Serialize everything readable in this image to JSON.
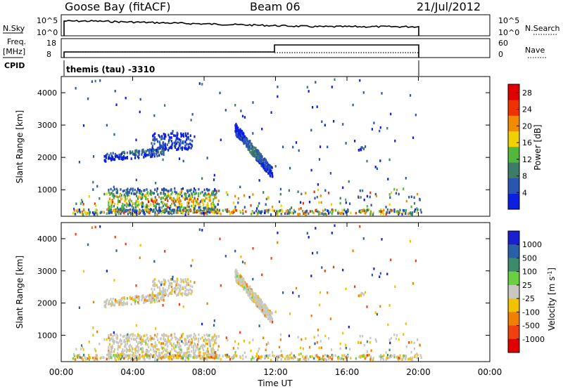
{
  "header": {
    "station": "Goose Bay (fitACF)",
    "beam": "Beam 06",
    "date": "21/Jul/2012"
  },
  "noise_panel": {
    "left_label": "N.Sky",
    "left_ticks": [
      "10^5",
      "10^0"
    ],
    "right_ticks": [
      "10^5",
      "10^0"
    ],
    "right_label": "N.Search"
  },
  "freq_panel": {
    "left_label_1": "Freq.",
    "left_label_2": "[MHz]",
    "left_ticks": [
      "18",
      "8"
    ],
    "right_ticks": [
      "60",
      "0"
    ],
    "right_label": "Nave"
  },
  "cpid": {
    "label": "CPID",
    "value": "themis (tau) -3310"
  },
  "chart_data": [
    {
      "type": "heatmap",
      "parameter": "Power",
      "ylabel": "Slant Range [km]",
      "yticks": [
        "1000",
        "2000",
        "3000",
        "4000"
      ],
      "ylim": [
        180,
        4500
      ],
      "xlim_hours": [
        0,
        24
      ],
      "colorbar": {
        "label": "Power [dB]",
        "ticks": [
          "4",
          "8",
          "12",
          "16",
          "20",
          "24",
          "28"
        ],
        "range": [
          0,
          30
        ],
        "colors": [
          "#0a1fe0",
          "#2a55b0",
          "#3c7c68",
          "#52b83c",
          "#f0d000",
          "#f08c00",
          "#f03200",
          "#e00000"
        ]
      },
      "echo_regions": [
        {
          "t_start": 2.6,
          "t_end": 8.7,
          "r_min": 230,
          "r_max": 1000,
          "max_power_db": 28
        },
        {
          "t_start": 2.3,
          "t_end": 5.8,
          "r_min": 1950,
          "r_max": 2350,
          "max_power_db": 12
        },
        {
          "t_start": 5.0,
          "t_end": 7.3,
          "r_min": 2150,
          "r_max": 2700,
          "max_power_db": 8
        },
        {
          "t_start": 9.7,
          "t_end": 11.8,
          "r_min": 1450,
          "r_max": 2850,
          "max_power_db": 12
        },
        {
          "t_start": 16.6,
          "t_end": 17.0,
          "r_min": 2150,
          "r_max": 2350,
          "max_power_db": 12
        }
      ]
    },
    {
      "type": "heatmap",
      "parameter": "Velocity",
      "ylabel": "Slant Range [km]",
      "yticks": [
        "1000",
        "2000",
        "3000",
        "4000"
      ],
      "ylim": [
        180,
        4500
      ],
      "xlim_hours": [
        0,
        24
      ],
      "colorbar": {
        "label": "Velocity [m s^-1]",
        "ticks": [
          "1000",
          "500",
          "100",
          "25",
          "-25",
          "-100",
          "-500",
          "-1000"
        ],
        "colors": [
          "#1820d0",
          "#2a60a8",
          "#3c8a6c",
          "#6ad040",
          "#c8c8c0",
          "#f2c200",
          "#f08000",
          "#f04010",
          "#e00000"
        ]
      }
    }
  ],
  "x_axis": {
    "ticks": [
      "00:00",
      "04:00",
      "08:00",
      "12:00",
      "16:00",
      "20:00",
      "00:00"
    ],
    "label": "Time UT"
  }
}
